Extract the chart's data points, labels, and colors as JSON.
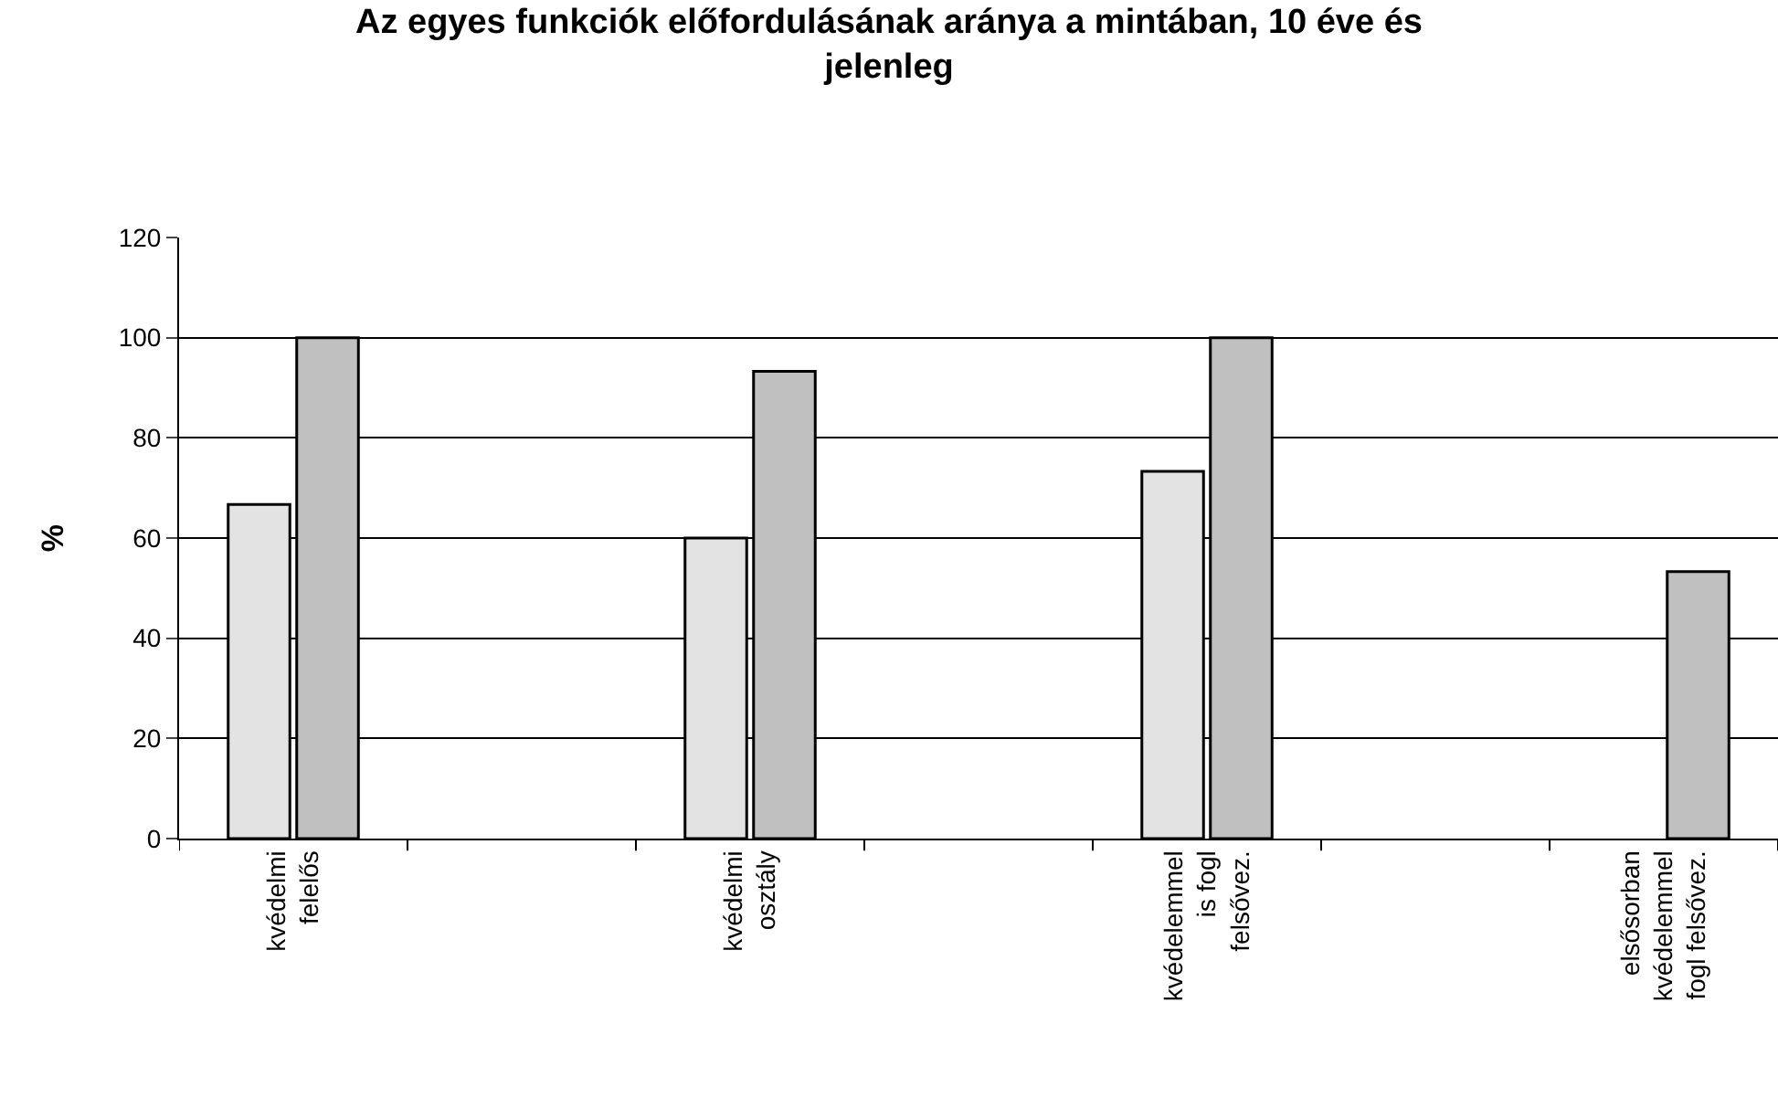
{
  "chart_data": {
    "type": "bar",
    "title": "Az egyes funkciók előfordulásának aránya a mintában, 10 éve és\njelenleg",
    "ylabel": "%",
    "categories": [
      "kvédelmi\nfelelős",
      null,
      "kvédelmi\nosztály",
      null,
      "kvédelemmel\nis fogl\nfelsővez.",
      null,
      "elsősorban\nkvédelemmel\nfogl felsővez."
    ],
    "series": [
      {
        "color": "#e3e3e3",
        "values": [
          66.7,
          null,
          60,
          null,
          73.3,
          null,
          null
        ]
      },
      {
        "color": "#c0c0c0",
        "values": [
          100,
          null,
          93.3,
          null,
          100,
          null,
          53.3
        ]
      }
    ],
    "ylim": [
      0,
      120
    ],
    "yticks": [
      0,
      20,
      40,
      60,
      80,
      100,
      120
    ],
    "grid": "y",
    "legend": false
  }
}
